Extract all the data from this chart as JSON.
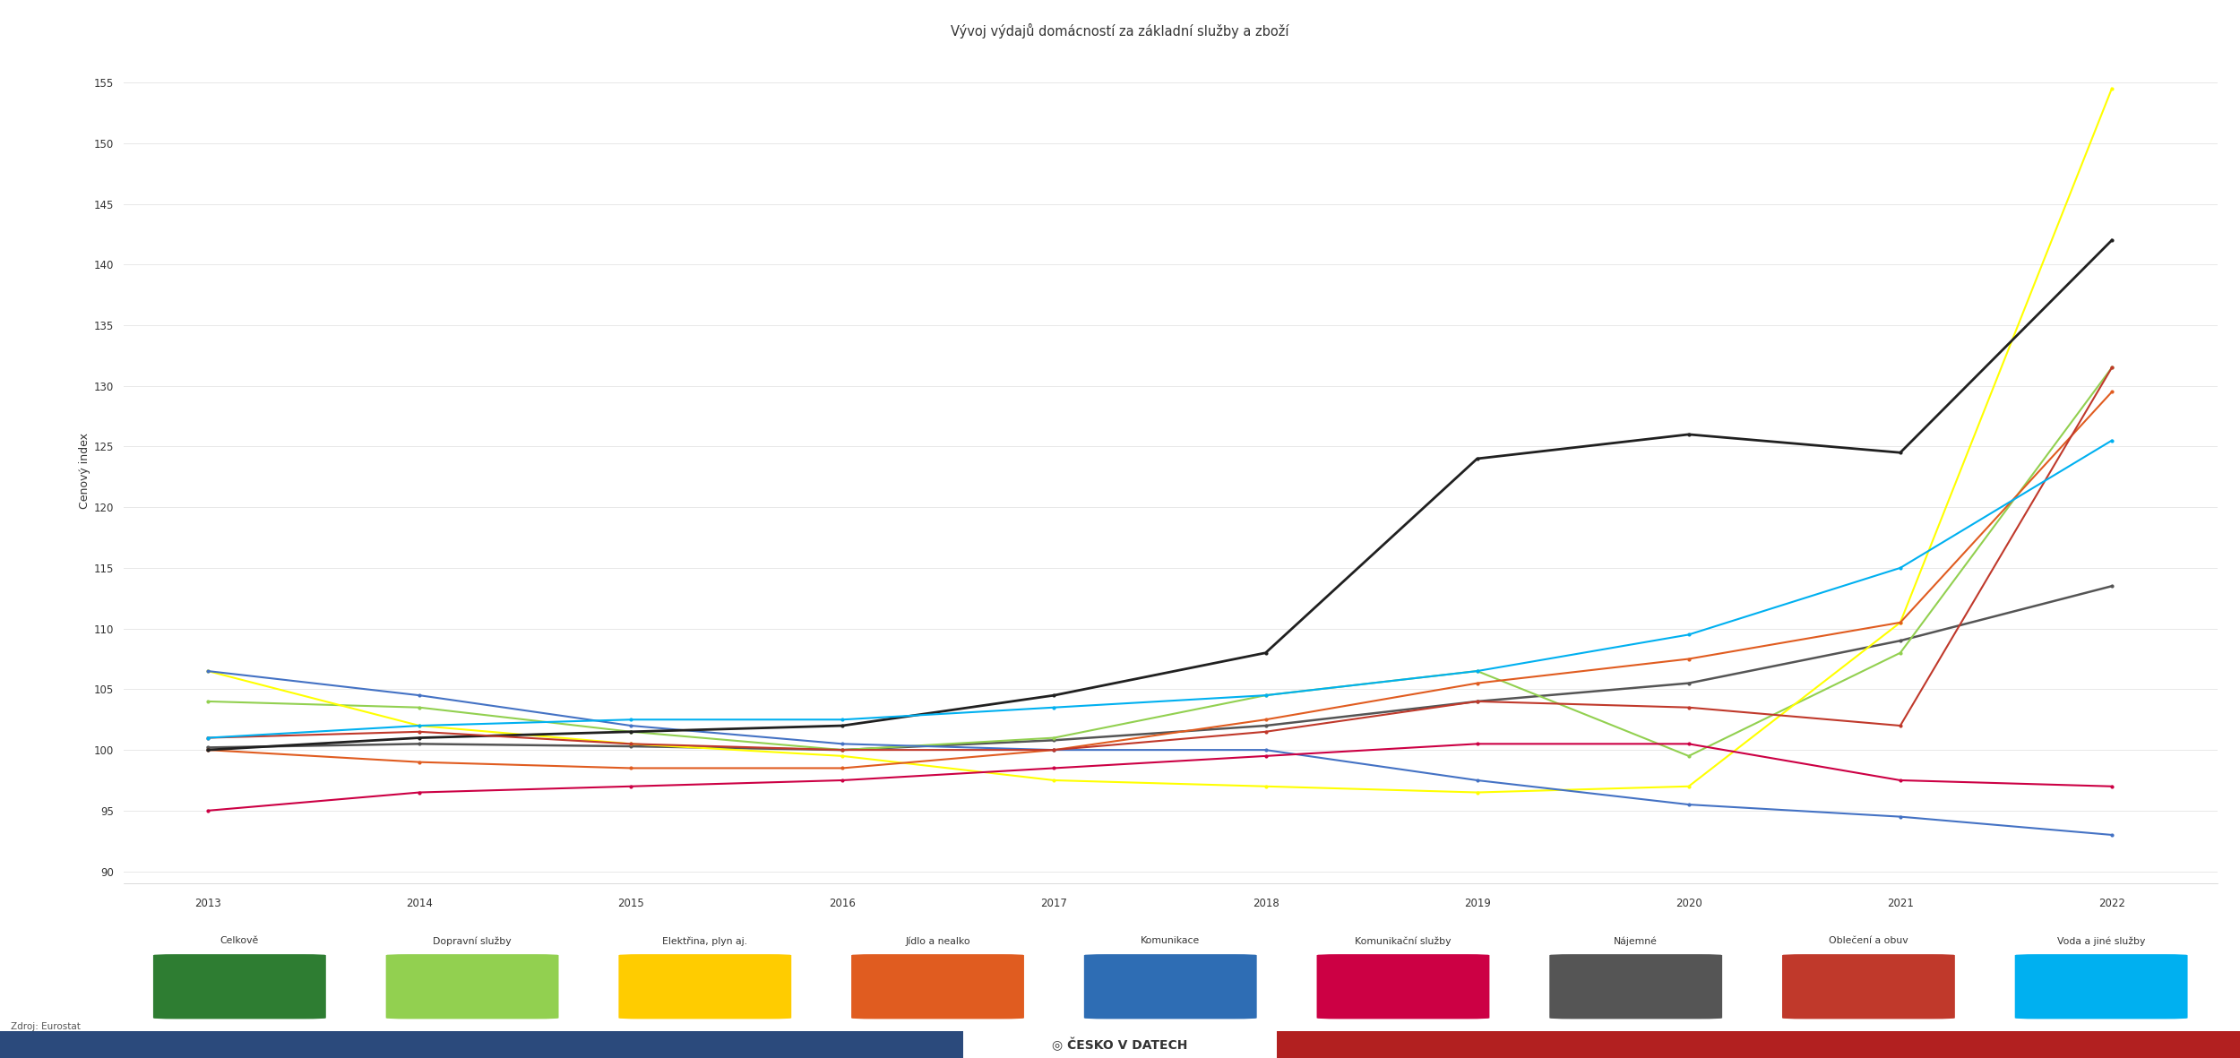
{
  "title": "Vývoj výdajů domácností za základní služby a zboží",
  "ylabel": "Cenový index",
  "years": [
    2013,
    2014,
    2015,
    2016,
    2017,
    2018,
    2019,
    2020,
    2021,
    2022
  ],
  "ylim": [
    90,
    157
  ],
  "yticks": [
    90,
    95,
    100,
    105,
    110,
    115,
    120,
    125,
    130,
    135,
    140,
    145,
    150,
    155
  ],
  "series": [
    {
      "name": "Celkově",
      "color": "#555555",
      "lw": 1.8,
      "values": [
        100.2,
        100.5,
        100.3,
        100.0,
        100.8,
        102.0,
        104.0,
        105.5,
        109.0,
        113.5
      ],
      "marker": "o"
    },
    {
      "name": "Dopravní služby",
      "color": "#92d050",
      "lw": 1.5,
      "values": [
        104.0,
        103.5,
        101.5,
        100.0,
        101.0,
        104.5,
        106.5,
        99.5,
        108.0,
        131.5
      ],
      "marker": "o"
    },
    {
      "name": "Elektřina, plyn aj.",
      "color": "#ffff00",
      "lw": 1.5,
      "values": [
        106.5,
        102.0,
        100.5,
        99.5,
        97.5,
        97.0,
        96.5,
        97.0,
        110.5,
        154.5
      ],
      "marker": "o"
    },
    {
      "name": "Jídlo a nealko",
      "color": "#e05c20",
      "lw": 1.5,
      "values": [
        100.0,
        99.0,
        98.5,
        98.5,
        100.0,
        102.5,
        105.5,
        107.5,
        110.5,
        129.5
      ],
      "marker": "o"
    },
    {
      "name": "Komunikace",
      "color": "#4472c4",
      "lw": 1.5,
      "values": [
        106.5,
        104.5,
        102.0,
        100.5,
        100.0,
        100.0,
        97.5,
        95.5,
        94.5,
        93.0
      ],
      "marker": "o"
    },
    {
      "name": "Komunikační služby",
      "color": "#cc0044",
      "lw": 1.5,
      "values": [
        95.0,
        96.5,
        97.0,
        97.5,
        98.5,
        99.5,
        100.5,
        100.5,
        97.5,
        97.0
      ],
      "marker": "o"
    },
    {
      "name": "Nájemné",
      "color": "#202020",
      "lw": 2.0,
      "values": [
        100.0,
        101.0,
        101.5,
        102.0,
        104.5,
        108.0,
        124.0,
        126.0,
        124.5,
        142.0
      ],
      "marker": "o"
    },
    {
      "name": "Oblečení a obuv",
      "color": "#c0392b",
      "lw": 1.5,
      "values": [
        101.0,
        101.5,
        100.5,
        100.0,
        100.0,
        101.5,
        104.0,
        103.5,
        102.0,
        131.5
      ],
      "marker": "o"
    },
    {
      "name": "Voda a jiné služby",
      "color": "#00b0f0",
      "lw": 1.5,
      "values": [
        101.0,
        102.0,
        102.5,
        102.5,
        103.5,
        104.5,
        106.5,
        109.5,
        115.0,
        125.5
      ],
      "marker": "o"
    }
  ],
  "legend_items": [
    {
      "name": "Celkově",
      "color": "#555555",
      "icon_color": "#2e7d32"
    },
    {
      "name": "Dopravní služby",
      "color": "#92d050",
      "icon_color": "#92d050"
    },
    {
      "name": "Elektřina, plyn aj.",
      "color": "#ffff00",
      "icon_color": "#ffcc00"
    },
    {
      "name": "Jídlo a nealko",
      "color": "#e05c20",
      "icon_color": "#e05c20"
    },
    {
      "name": "Komunikace",
      "color": "#4472c4",
      "icon_color": "#4472c4"
    },
    {
      "name": "Komunikační služby",
      "color": "#cc0044",
      "icon_color": "#cc0044"
    },
    {
      "name": "Nájemné",
      "color": "#202020",
      "icon_color": "#555555"
    },
    {
      "name": "Oblečení a obuv",
      "color": "#c0392b",
      "icon_color": "#c0392b"
    },
    {
      "name": "Voda a jiné služby",
      "color": "#00b0f0",
      "icon_color": "#00b0f0"
    }
  ],
  "source_text": "Zdroj: Eurostat",
  "background_color": "#ffffff",
  "grid_color": "#e8e8e8",
  "footer_left_color": "#2b4a7c",
  "footer_right_color": "#b22020",
  "footer_center_color": "#f0f0f0"
}
